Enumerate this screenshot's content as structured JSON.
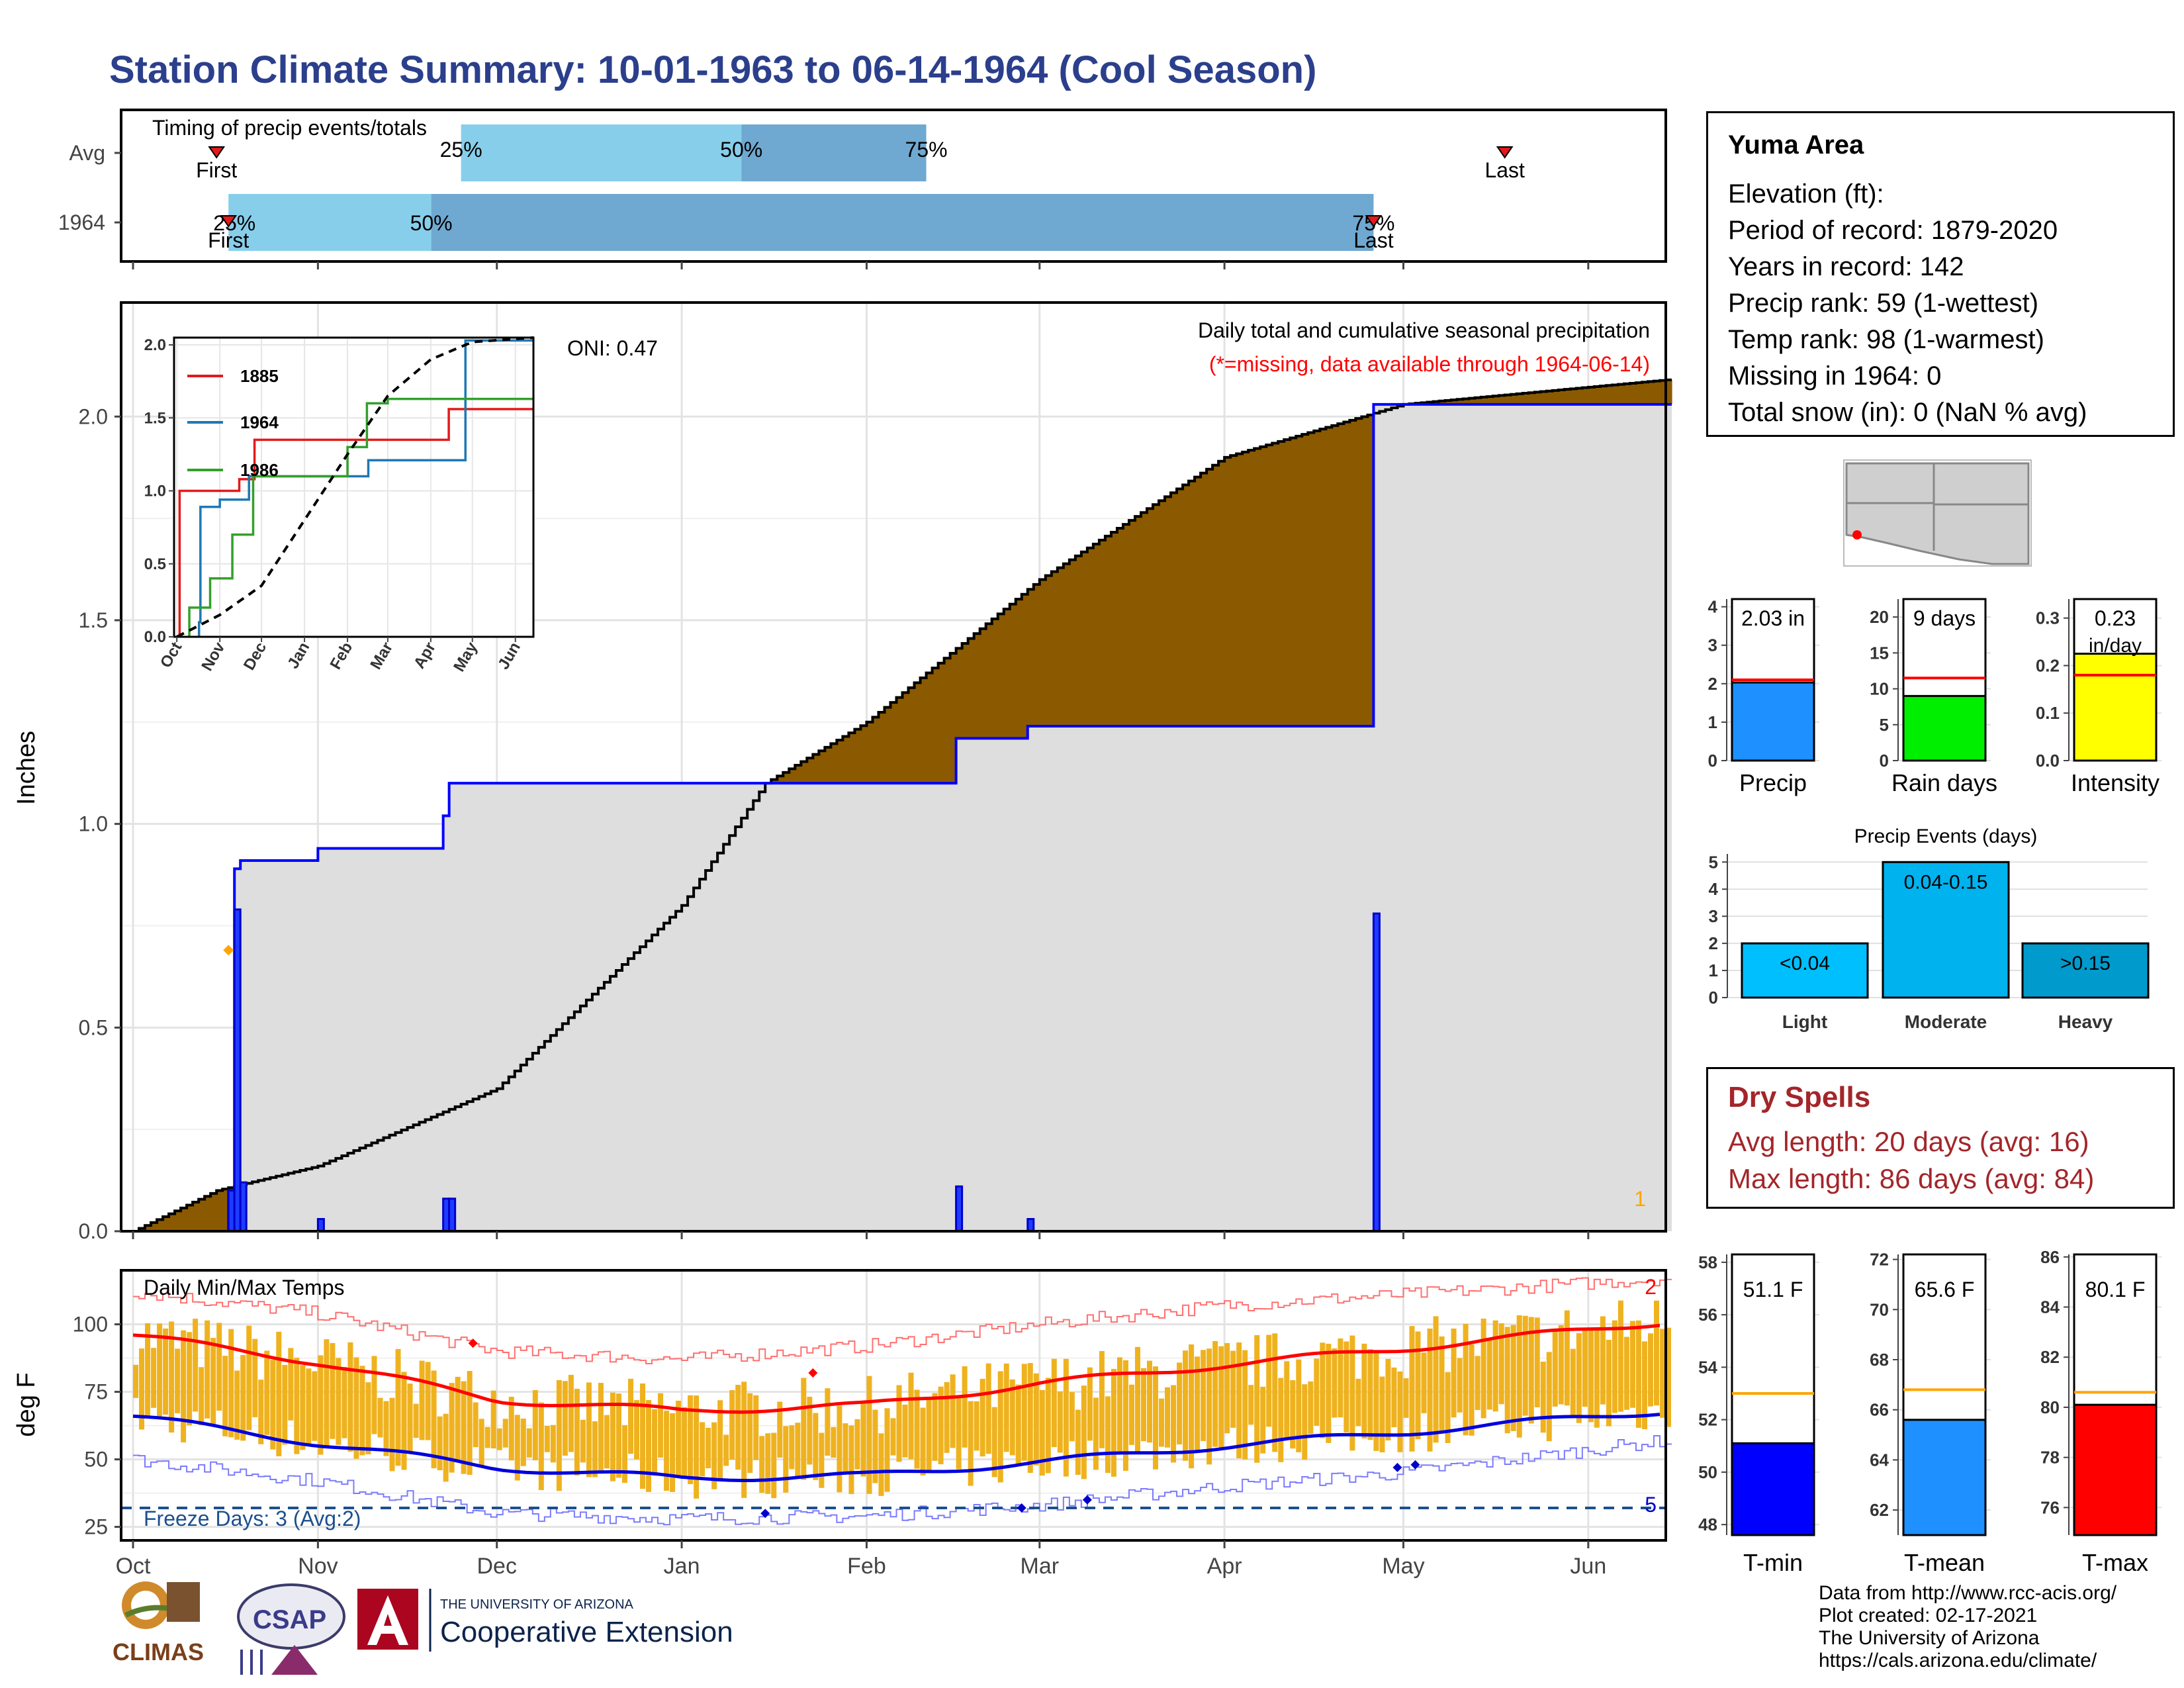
{
  "title": "Station Climate Summary: 10-01-1963 to 06-14-1964 (Cool Season)",
  "timing_panel": {
    "title": "Timing of precip events/totals",
    "rows": [
      {
        "label": "Avg",
        "first": "First",
        "last": "Last",
        "p25": "25%",
        "p50": "50%",
        "p75": "75%"
      },
      {
        "label": "1964",
        "first": "First",
        "last": "Last",
        "p25": "25%",
        "p50": "50%",
        "p75": "75%"
      }
    ]
  },
  "precip_panel": {
    "ylabel": "Inches",
    "oni": "ONI: 0.47",
    "caption": "Daily total and cumulative seasonal precipitation",
    "missing_note": "(*=missing, data available through 1964-06-14)",
    "missing_count": "1",
    "yticks": [
      "0.0",
      "0.5",
      "1.0",
      "1.5",
      "2.0"
    ],
    "xticks": [
      "Oct",
      "Nov",
      "Dec",
      "Jan",
      "Feb",
      "Mar",
      "Apr",
      "May",
      "Jun"
    ]
  },
  "inset": {
    "yticks": [
      "0.0",
      "0.5",
      "1.0",
      "1.5",
      "2.0"
    ],
    "xticks": [
      "Oct",
      "Nov",
      "Dec",
      "Jan",
      "Feb",
      "Mar",
      "Apr",
      "May",
      "Jun"
    ],
    "legend": [
      "1885",
      "1964",
      "1986"
    ]
  },
  "temp_panel": {
    "title": "Daily Min/Max Temps",
    "ylabel": "deg F",
    "freeze": "Freeze Days: 3 (Avg:2)",
    "record_high_count": "2",
    "record_low_count": "5",
    "yticks": [
      "25",
      "50",
      "75",
      "100"
    ],
    "xticks": [
      "Oct",
      "Nov",
      "Dec",
      "Jan",
      "Feb",
      "Mar",
      "Apr",
      "May",
      "Jun"
    ]
  },
  "station": {
    "name": "Yuma Area",
    "lines": [
      "Elevation (ft):",
      "Period of record: 1879-2020",
      "Years in record: 142",
      "Precip rank: 59 (1-wettest)",
      "Temp rank: 98 (1-warmest)",
      "Missing in 1964: 0",
      "Total snow (in): 0 (NaN % avg)"
    ]
  },
  "summary_bars": [
    {
      "label": "Precip",
      "value_label": "2.03 in",
      "value": 2.03,
      "avg": 2.1,
      "ymax": 4.2,
      "yticks": [
        "0",
        "1",
        "2",
        "3",
        "4"
      ],
      "color": "#1e90ff"
    },
    {
      "label": "Rain days",
      "value_label": "9 days",
      "value": 9,
      "avg": 11.5,
      "ymax": 22.5,
      "yticks": [
        "0",
        "5",
        "10",
        "15",
        "20"
      ],
      "color": "#00ee00"
    },
    {
      "label": "Intensity",
      "value_label": "0.23",
      "value_label2": "in/day",
      "value": 0.225,
      "avg": 0.18,
      "ymax": 0.34,
      "yticks": [
        "0.0",
        "0.1",
        "0.2",
        "0.3"
      ],
      "color": "#ffff00"
    }
  ],
  "precip_events": {
    "title": "Precip Events (days)",
    "yticks": [
      "0",
      "1",
      "2",
      "3",
      "4",
      "5"
    ],
    "bars": [
      {
        "label": "Light",
        "value_label": "<0.04",
        "value": 2,
        "color": "#00bfff"
      },
      {
        "label": "Moderate",
        "value_label": "0.04-0.15",
        "value": 5,
        "color": "#00b2ee"
      },
      {
        "label": "Heavy",
        "value_label": ">0.15",
        "value": 2,
        "color": "#009acd"
      }
    ]
  },
  "dry_spells": {
    "title": "Dry Spells",
    "avg_length": "Avg length: 20 days (avg: 16)",
    "max_length": "Max length: 86 days (avg: 84)"
  },
  "temp_bars": [
    {
      "label": "T-min",
      "value_label": "51.1 F",
      "value": 51.1,
      "avg": 53.0,
      "ymin": 47.6,
      "ymax": 58.3,
      "yticks": [
        "48",
        "50",
        "52",
        "54",
        "56",
        "58"
      ],
      "color": "#0000ff"
    },
    {
      "label": "T-mean",
      "value_label": "65.6 F",
      "value": 65.6,
      "avg": 66.8,
      "ymin": 61.0,
      "ymax": 72.2,
      "yticks": [
        "62",
        "64",
        "66",
        "68",
        "70",
        "72"
      ],
      "color": "#1e90ff"
    },
    {
      "label": "T-max",
      "value_label": "80.1 F",
      "value": 80.1,
      "avg": 80.6,
      "ymin": 74.9,
      "ymax": 86.1,
      "yticks": [
        "76",
        "78",
        "80",
        "82",
        "84",
        "86"
      ],
      "color": "#ff0000"
    }
  ],
  "footer": {
    "lines": [
      "Data from http://www.rcc-acis.org/",
      "Plot created: 02-17-2021",
      "The University of Arizona",
      "https://cals.arizona.edu/climate/"
    ]
  },
  "logos": {
    "climas": "CLIMAS",
    "csap": "CSAP",
    "ua_small": "THE UNIVERSITY OF ARIZONA",
    "ua_big": "Cooperative Extension"
  },
  "chart_data": [
    {
      "type": "bar",
      "title": "Timing of precip events/totals",
      "categories": [
        "Avg",
        "1964"
      ],
      "series": [
        {
          "name": "25%",
          "values": [
            "1963-11-25",
            "1963-10-17"
          ]
        },
        {
          "name": "50%",
          "values": [
            "1964-01-11",
            "1963-11-20"
          ]
        },
        {
          "name": "75%",
          "values": [
            "1964-02-11",
            "1964-04-26"
          ]
        }
      ]
    },
    {
      "type": "area",
      "title": "Daily total and cumulative seasonal precipitation",
      "ylabel": "Inches",
      "ylim": [
        0,
        2.28
      ],
      "daily_precip_1964": [
        {
          "date": "1963-10-17",
          "value": 0.1
        },
        {
          "date": "1963-10-18",
          "value": 0.79
        },
        {
          "date": "1963-10-19",
          "value": 0.12
        },
        {
          "date": "1963-11-01",
          "value": 0.03
        },
        {
          "date": "1963-11-22",
          "value": 0.08
        },
        {
          "date": "1963-11-23",
          "value": 0.08
        },
        {
          "date": "1964-02-16",
          "value": 0.11
        },
        {
          "date": "1964-02-28",
          "value": 0.03
        },
        {
          "date": "1964-04-26",
          "value": 0.78
        }
      ],
      "cumulative_1964": [
        {
          "date": "1963-10-01",
          "value": 0.0
        },
        {
          "date": "1963-10-17",
          "value": 0.1
        },
        {
          "date": "1963-10-18",
          "value": 0.89
        },
        {
          "date": "1963-10-19",
          "value": 0.91
        },
        {
          "date": "1963-11-01",
          "value": 0.94
        },
        {
          "date": "1963-11-22",
          "value": 1.02
        },
        {
          "date": "1963-11-23",
          "value": 1.1
        },
        {
          "date": "1964-02-16",
          "value": 1.21
        },
        {
          "date": "1964-02-28",
          "value": 1.24
        },
        {
          "date": "1964-04-26",
          "value": 2.03
        },
        {
          "date": "1964-06-14",
          "value": 2.03
        }
      ],
      "cumulative_avg": [
        {
          "date": "1963-10-01",
          "value": 0.0
        },
        {
          "date": "1963-10-15",
          "value": 0.1
        },
        {
          "date": "1963-11-01",
          "value": 0.16
        },
        {
          "date": "1963-12-01",
          "value": 0.35
        },
        {
          "date": "1964-01-01",
          "value": 0.8
        },
        {
          "date": "1964-01-15",
          "value": 1.1
        },
        {
          "date": "1964-02-01",
          "value": 1.25
        },
        {
          "date": "1964-03-01",
          "value": 1.6
        },
        {
          "date": "1964-04-01",
          "value": 1.9
        },
        {
          "date": "1964-05-01",
          "value": 2.03
        },
        {
          "date": "1964-06-14",
          "value": 2.09
        }
      ]
    },
    {
      "type": "line",
      "title": "",
      "ylim": [
        0,
        2.05
      ],
      "series": [
        {
          "name": "1885",
          "points": [
            {
              "x": "1963-10-03",
              "y": 1.0
            },
            {
              "x": "1963-11-15",
              "y": 1.08
            },
            {
              "x": "1963-11-26",
              "y": 1.35
            },
            {
              "x": "1964-04-10",
              "y": 1.35
            },
            {
              "x": "1964-04-14",
              "y": 1.56
            },
            {
              "x": "1964-06-14",
              "y": 1.56
            }
          ]
        },
        {
          "name": "1964",
          "points": [
            {
              "x": "1963-10-17",
              "y": 0.1
            },
            {
              "x": "1963-10-18",
              "y": 0.89
            },
            {
              "x": "1963-11-01",
              "y": 0.94
            },
            {
              "x": "1963-11-22",
              "y": 1.1
            },
            {
              "x": "1964-02-16",
              "y": 1.21
            },
            {
              "x": "1964-04-26",
              "y": 2.03
            },
            {
              "x": "1964-06-14",
              "y": 2.03
            }
          ]
        },
        {
          "name": "1986",
          "points": [
            {
              "x": "1963-10-10",
              "y": 0.2
            },
            {
              "x": "1963-10-25",
              "y": 0.4
            },
            {
              "x": "1963-11-10",
              "y": 0.7
            },
            {
              "x": "1963-11-25",
              "y": 1.1
            },
            {
              "x": "1964-02-01",
              "y": 1.3
            },
            {
              "x": "1964-02-15",
              "y": 1.6
            },
            {
              "x": "1964-03-01",
              "y": 1.63
            },
            {
              "x": "1964-06-14",
              "y": 1.63
            }
          ]
        },
        {
          "name": "average",
          "points": [
            {
              "x": "1963-10-01",
              "y": 0.0
            },
            {
              "x": "1963-11-01",
              "y": 0.15
            },
            {
              "x": "1963-12-01",
              "y": 0.35
            },
            {
              "x": "1964-01-01",
              "y": 0.8
            },
            {
              "x": "1964-02-01",
              "y": 1.25
            },
            {
              "x": "1964-03-01",
              "y": 1.65
            },
            {
              "x": "1964-04-01",
              "y": 1.9
            },
            {
              "x": "1964-05-01",
              "y": 2.02
            },
            {
              "x": "1964-06-14",
              "y": 2.05
            }
          ]
        }
      ]
    },
    {
      "type": "line",
      "title": "Daily Min/Max Temps",
      "ylabel": "deg F",
      "ylim": [
        20,
        120
      ],
      "series": [
        {
          "name": "normal max",
          "points": [
            {
              "x": "1963-10-01",
              "y": 96
            },
            {
              "x": "1963-11-01",
              "y": 86
            },
            {
              "x": "1963-12-01",
              "y": 72
            },
            {
              "x": "1964-01-01",
              "y": 68
            },
            {
              "x": "1964-02-01",
              "y": 70
            },
            {
              "x": "1964-03-01",
              "y": 78
            },
            {
              "x": "1964-04-01",
              "y": 85
            },
            {
              "x": "1964-05-01",
              "y": 91
            },
            {
              "x": "1964-06-14",
              "y": 101
            }
          ]
        },
        {
          "name": "normal min",
          "points": [
            {
              "x": "1963-10-01",
              "y": 66
            },
            {
              "x": "1963-11-01",
              "y": 56
            },
            {
              "x": "1963-12-01",
              "y": 47
            },
            {
              "x": "1964-01-01",
              "y": 43
            },
            {
              "x": "1964-02-01",
              "y": 44
            },
            {
              "x": "1964-03-01",
              "y": 49
            },
            {
              "x": "1964-04-01",
              "y": 55
            },
            {
              "x": "1964-05-01",
              "y": 60
            },
            {
              "x": "1964-06-14",
              "y": 68
            }
          ]
        },
        {
          "name": "record max",
          "points": [
            {
              "x": "1963-10-01",
              "y": 112
            },
            {
              "x": "1963-11-01",
              "y": 104
            },
            {
              "x": "1963-12-01",
              "y": 90
            },
            {
              "x": "1964-01-01",
              "y": 87
            },
            {
              "x": "1964-02-01",
              "y": 92
            },
            {
              "x": "1964-03-01",
              "y": 100
            },
            {
              "x": "1964-04-01",
              "y": 107
            },
            {
              "x": "1964-05-01",
              "y": 111
            },
            {
              "x": "1964-06-14",
              "y": 117
            }
          ]
        },
        {
          "name": "record min",
          "points": [
            {
              "x": "1963-10-01",
              "y": 50
            },
            {
              "x": "1963-11-01",
              "y": 42
            },
            {
              "x": "1963-12-01",
              "y": 30
            },
            {
              "x": "1964-01-01",
              "y": 28
            },
            {
              "x": "1964-02-01",
              "y": 29
            },
            {
              "x": "1964-03-01",
              "y": 33
            },
            {
              "x": "1964-04-01",
              "y": 40
            },
            {
              "x": "1964-05-01",
              "y": 45
            },
            {
              "x": "1964-06-14",
              "y": 57
            }
          ]
        },
        {
          "name": "freeze",
          "points": [
            {
              "x": "1963-10-01",
              "y": 32
            },
            {
              "x": "1964-06-14",
              "y": 32
            }
          ]
        }
      ]
    },
    {
      "type": "bar",
      "categories": [
        "Precip",
        "Rain days",
        "Intensity"
      ],
      "values": [
        2.03,
        9,
        0.23
      ]
    },
    {
      "type": "bar",
      "title": "Precip Events (days)",
      "categories": [
        "Light",
        "Moderate",
        "Heavy"
      ],
      "values": [
        2,
        5,
        2
      ]
    },
    {
      "type": "bar",
      "categories": [
        "T-min",
        "T-mean",
        "T-max"
      ],
      "values": [
        51.1,
        65.6,
        80.1
      ]
    }
  ]
}
